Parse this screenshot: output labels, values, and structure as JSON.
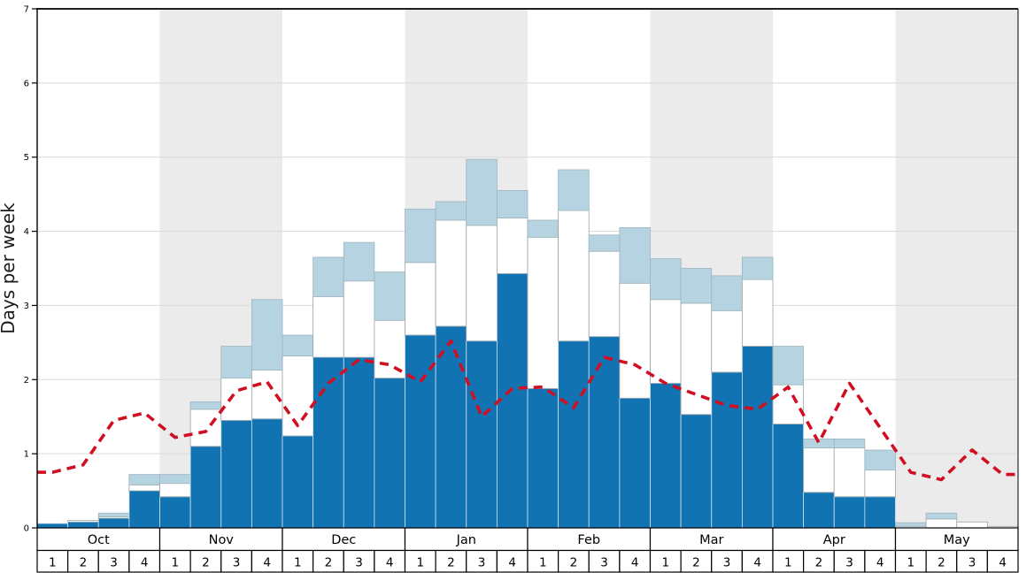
{
  "chart_data": {
    "type": "bar",
    "title": "",
    "ylabel": "Days per week",
    "ylim": [
      0,
      7
    ],
    "yticks": [
      0,
      1,
      2,
      3,
      4,
      5,
      6,
      7
    ],
    "grid": true,
    "legend": "none",
    "months": [
      {
        "label": "Oct",
        "shaded": false
      },
      {
        "label": "Nov",
        "shaded": true
      },
      {
        "label": "Dec",
        "shaded": false
      },
      {
        "label": "Jan",
        "shaded": true
      },
      {
        "label": "Feb",
        "shaded": false
      },
      {
        "label": "Mar",
        "shaded": true
      },
      {
        "label": "Apr",
        "shaded": false
      },
      {
        "label": "May",
        "shaded": true
      }
    ],
    "week_labels": [
      "1",
      "2",
      "3",
      "4"
    ],
    "series": [
      {
        "name": "dark-blue-bars",
        "type": "bar-stack-bottom",
        "color": "#1173b2",
        "stroke": "#d2e4ef",
        "values": [
          0.06,
          0.08,
          0.13,
          0.5,
          0.42,
          1.1,
          1.45,
          1.47,
          1.24,
          2.3,
          2.3,
          2.02,
          2.6,
          2.72,
          2.52,
          3.43,
          1.88,
          2.52,
          2.58,
          1.75,
          1.95,
          1.53,
          2.1,
          2.45,
          1.4,
          0.48,
          0.42,
          0.42,
          0.0,
          0.0,
          0.0,
          0.0
        ]
      },
      {
        "name": "white-bars",
        "type": "bar-stack-middle",
        "color": "#ffffff",
        "stroke": "#9aa4aa",
        "values": [
          0.0,
          0.02,
          0.02,
          0.08,
          0.18,
          0.5,
          0.57,
          0.66,
          1.08,
          0.82,
          1.03,
          0.78,
          0.98,
          1.43,
          1.56,
          0.75,
          2.04,
          1.76,
          1.15,
          1.55,
          1.13,
          1.5,
          0.83,
          0.9,
          0.53,
          0.6,
          0.66,
          0.36,
          0.02,
          0.12,
          0.08,
          0.02
        ]
      },
      {
        "name": "light-blue-bars",
        "type": "bar-stack-top",
        "color": "#b5d3e0",
        "stroke": "#9fb4be",
        "values": [
          0.0,
          0.0,
          0.05,
          0.14,
          0.12,
          0.1,
          0.43,
          0.95,
          0.28,
          0.53,
          0.52,
          0.65,
          0.72,
          0.25,
          0.89,
          0.37,
          0.23,
          0.55,
          0.22,
          0.75,
          0.55,
          0.47,
          0.47,
          0.3,
          0.52,
          0.12,
          0.12,
          0.27,
          0.05,
          0.08,
          0.0,
          0.0
        ]
      },
      {
        "name": "red-dashed-line",
        "type": "line",
        "color": "#d10f22",
        "dash": "dashed",
        "values": [
          0.75,
          0.85,
          1.45,
          1.55,
          1.22,
          1.3,
          1.85,
          1.97,
          1.38,
          1.95,
          2.27,
          2.2,
          1.97,
          2.52,
          1.5,
          1.88,
          1.9,
          1.62,
          2.3,
          2.2,
          1.95,
          1.8,
          1.65,
          1.6,
          1.9,
          1.15,
          1.95,
          1.35,
          0.75,
          0.65,
          1.05,
          0.72
        ]
      }
    ],
    "plot_colors": {
      "background": "#ffffff",
      "shaded_band": "#ebebeb",
      "gridline": "#d9d9d9",
      "axis": "#000000",
      "cell_background": "#ffffff",
      "cell_border": "#000000"
    }
  }
}
